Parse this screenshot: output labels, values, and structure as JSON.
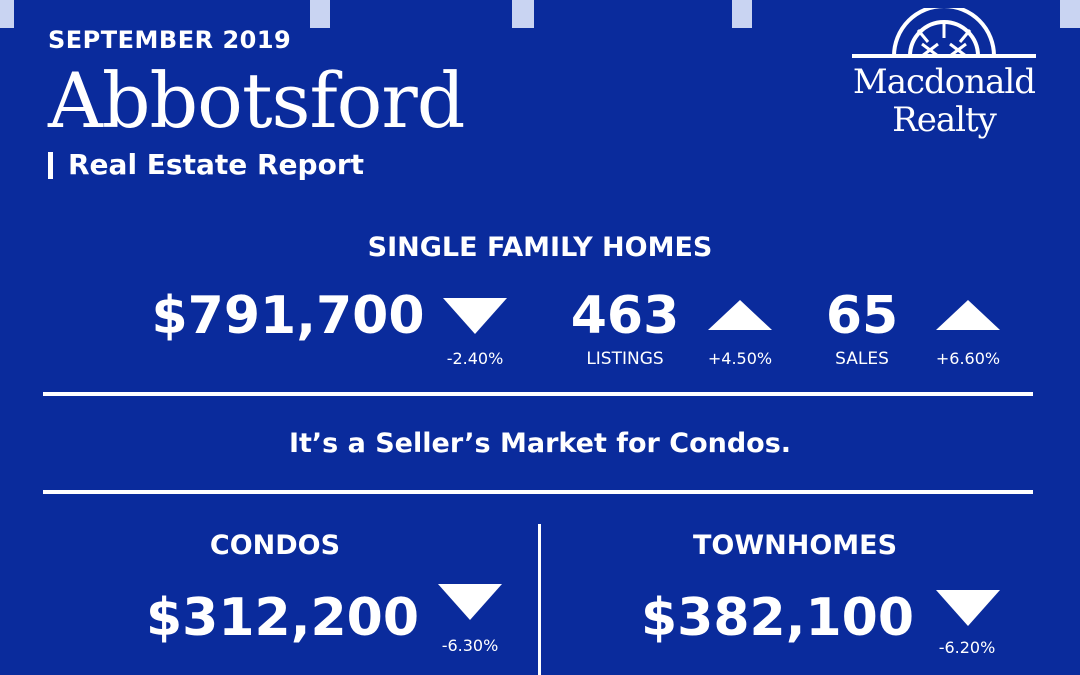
{
  "header": {
    "month": "SEPTEMBER 2019",
    "city": "Abbotsford",
    "subtitle": "Real Estate Report"
  },
  "logo": {
    "line1": "Macdonald",
    "line2": "Realty",
    "icon": "compass-arch-icon"
  },
  "single_family": {
    "title": "SINGLE FAMILY HOMES",
    "price": "$791,700",
    "price_change": "-2.40%",
    "price_trend": "down",
    "listings": "463",
    "listings_label": "LISTINGS",
    "listings_change": "+4.50%",
    "listings_trend": "up",
    "sales": "65",
    "sales_label": "SALES",
    "sales_change": "+6.60%",
    "sales_trend": "up"
  },
  "tagline": "It’s a Seller’s Market for Condos.",
  "condos": {
    "title": "CONDOS",
    "price": "$312,200",
    "price_change": "-6.30%",
    "price_trend": "down"
  },
  "townhomes": {
    "title": "TOWNHOMES",
    "price": "$382,100",
    "price_change": "-6.20%",
    "price_trend": "down"
  },
  "colors": {
    "background": "#0a2b9c",
    "foreground": "#ffffff",
    "accent_tabs": "#c9d4f2"
  }
}
